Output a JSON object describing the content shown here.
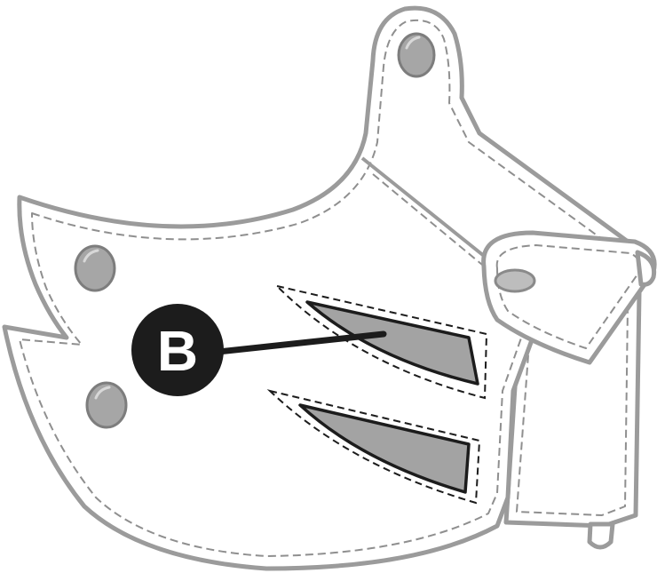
{
  "diagram": {
    "callouts": [
      {
        "label": "B",
        "target": "vent-slots"
      }
    ],
    "colors": {
      "outline": "#9b9b9b",
      "stitching": "#8f8f8f",
      "vent_fill": "#a3a3a3",
      "rivet": "#a6a6a6",
      "callout": "#1c1c1c",
      "background": "#ffffff"
    }
  }
}
